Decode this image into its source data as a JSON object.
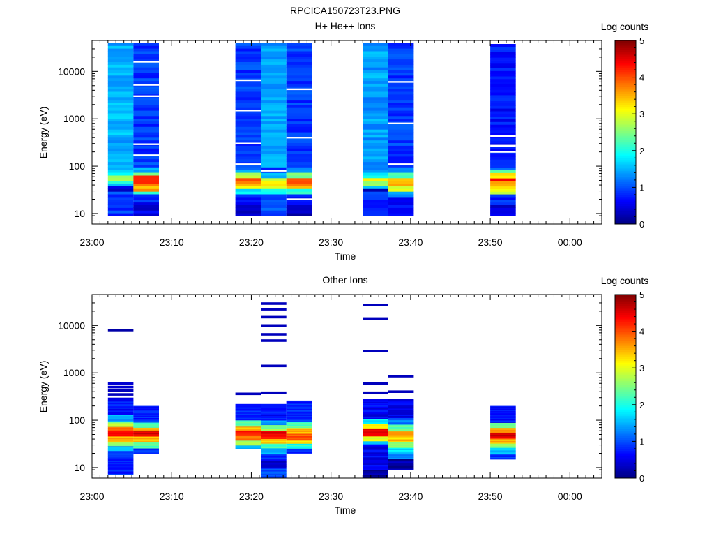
{
  "figure_title": "RPCICA150723T23.PNG",
  "panels": [
    {
      "title": "H+ He++ Ions",
      "ylabel": "Energy (eV)",
      "xlabel": "Time",
      "colorbar_title": "Log counts"
    },
    {
      "title": "Other Ions",
      "ylabel": "Energy (eV)",
      "xlabel": "Time",
      "colorbar_title": "Log counts"
    }
  ],
  "chart_data": [
    {
      "type": "heatmap",
      "title": "H+ He++ Ions",
      "xlabel": "Time",
      "ylabel": "Energy (eV)",
      "x_range_minutes": [
        0,
        64
      ],
      "x_ticks": [
        {
          "label": "23:00",
          "minutes": 0
        },
        {
          "label": "23:10",
          "minutes": 10
        },
        {
          "label": "23:20",
          "minutes": 20
        },
        {
          "label": "23:30",
          "minutes": 30
        },
        {
          "label": "23:40",
          "minutes": 40
        },
        {
          "label": "23:50",
          "minutes": 50
        },
        {
          "label": "00:00",
          "minutes": 60
        }
      ],
      "y_scale": "log",
      "y_range": [
        6,
        45000
      ],
      "y_ticks": [
        "10",
        "100",
        "1000",
        "10000"
      ],
      "colorbar": {
        "title": "Log counts",
        "range": [
          0,
          5
        ],
        "ticks": [
          "0",
          "1",
          "2",
          "3",
          "4",
          "5"
        ],
        "colormap": "jet"
      },
      "columns": [
        {
          "t_start": 2.0,
          "t_end": 5.2,
          "e_min": 9,
          "e_max": 40000,
          "bins": [
            [
              9,
              25,
              0.9
            ],
            [
              25,
              30,
              1.2
            ],
            [
              30,
              36,
              0.3
            ],
            [
              36,
              42,
              1.4
            ],
            [
              42,
              50,
              2.2
            ],
            [
              50,
              62,
              2.5
            ],
            [
              62,
              75,
              1.9
            ],
            [
              75,
              40000,
              1.5
            ]
          ]
        },
        {
          "t_start": 5.2,
          "t_end": 8.4,
          "e_min": 9,
          "e_max": 40000,
          "bins": [
            [
              9,
              18,
              0.5
            ],
            [
              18,
              25,
              0.8
            ],
            [
              25,
              31,
              2.0
            ],
            [
              31,
              38,
              3.5
            ],
            [
              38,
              45,
              3.7
            ],
            [
              45,
              54,
              4.4
            ],
            [
              54,
              62,
              4.2
            ],
            [
              62,
              75,
              2.5
            ],
            [
              75,
              100,
              1.4
            ],
            [
              100,
              40000,
              0.9
            ]
          ],
          "gaps": [
            170,
            290,
            3000,
            5200,
            16000
          ]
        },
        {
          "t_start": 18.0,
          "t_end": 21.2,
          "e_min": 9,
          "e_max": 40000,
          "bins": [
            [
              9,
              17,
              0.4
            ],
            [
              17,
              25,
              0.7
            ],
            [
              25,
              32,
              1.7
            ],
            [
              32,
              40,
              3.2
            ],
            [
              40,
              48,
              3.6
            ],
            [
              48,
              58,
              3.9
            ],
            [
              58,
              70,
              2.8
            ],
            [
              70,
              95,
              1.3
            ],
            [
              95,
              40000,
              0.9
            ]
          ],
          "gaps": [
            110,
            300,
            1500,
            6500
          ]
        },
        {
          "t_start": 21.2,
          "t_end": 24.4,
          "e_min": 9,
          "e_max": 40000,
          "bins": [
            [
              9,
              26,
              1.0
            ],
            [
              26,
              33,
              1.8
            ],
            [
              33,
              40,
              3.0
            ],
            [
              40,
              47,
              3.2
            ],
            [
              47,
              60,
              2.9
            ],
            [
              60,
              72,
              1.4
            ],
            [
              72,
              100,
              0.9
            ],
            [
              100,
              40000,
              1.4
            ]
          ],
          "gaps": [
            80
          ]
        },
        {
          "t_start": 24.4,
          "t_end": 27.6,
          "e_min": 9,
          "e_max": 40000,
          "bins": [
            [
              9,
              15,
              0.3
            ],
            [
              15,
              25,
              0.7
            ],
            [
              25,
              32,
              2.0
            ],
            [
              32,
              40,
              3.5
            ],
            [
              40,
              48,
              3.9
            ],
            [
              48,
              60,
              3.8
            ],
            [
              60,
              75,
              2.5
            ],
            [
              75,
              100,
              1.2
            ],
            [
              100,
              40000,
              0.9
            ]
          ],
          "gaps": [
            20,
            400,
            4200
          ]
        },
        {
          "t_start": 34.0,
          "t_end": 37.2,
          "e_min": 9,
          "e_max": 40000,
          "bins": [
            [
              9,
              28,
              0.8
            ],
            [
              28,
              34,
              0.3
            ],
            [
              34,
              40,
              1.4
            ],
            [
              40,
              50,
              2.6
            ],
            [
              50,
              60,
              3.0
            ],
            [
              60,
              75,
              1.8
            ],
            [
              75,
              40000,
              1.4
            ]
          ]
        },
        {
          "t_start": 37.2,
          "t_end": 40.4,
          "e_min": 9,
          "e_max": 40000,
          "bins": [
            [
              9,
              22,
              0.6
            ],
            [
              22,
              28,
              1.4
            ],
            [
              28,
              36,
              3.0
            ],
            [
              36,
              45,
              3.4
            ],
            [
              45,
              56,
              3.3
            ],
            [
              56,
              70,
              2.3
            ],
            [
              70,
              90,
              1.3
            ],
            [
              90,
              40000,
              0.9
            ]
          ],
          "gaps": [
            110,
            800,
            6000
          ]
        },
        {
          "t_start": 50.0,
          "t_end": 53.2,
          "e_min": 9,
          "e_max": 38000,
          "bins": [
            [
              9,
              16,
              0.4
            ],
            [
              16,
              25,
              0.8
            ],
            [
              25,
              30,
              2.6
            ],
            [
              30,
              38,
              3.1
            ],
            [
              38,
              47,
              3.7
            ],
            [
              47,
              58,
              4.2
            ],
            [
              58,
              70,
              3.3
            ],
            [
              70,
              85,
              2.3
            ],
            [
              85,
              100,
              1.4
            ],
            [
              100,
              38000,
              0.7
            ]
          ],
          "gaps": [
            200,
            270,
            430
          ]
        }
      ]
    },
    {
      "type": "heatmap",
      "title": "Other Ions",
      "xlabel": "Time",
      "ylabel": "Energy (eV)",
      "x_range_minutes": [
        0,
        64
      ],
      "x_ticks": [
        {
          "label": "23:00",
          "minutes": 0
        },
        {
          "label": "23:10",
          "minutes": 10
        },
        {
          "label": "23:20",
          "minutes": 20
        },
        {
          "label": "23:30",
          "minutes": 30
        },
        {
          "label": "23:40",
          "minutes": 40
        },
        {
          "label": "23:50",
          "minutes": 50
        },
        {
          "label": "00:00",
          "minutes": 60
        }
      ],
      "y_scale": "log",
      "y_range": [
        6,
        45000
      ],
      "y_ticks": [
        "10",
        "100",
        "1000",
        "10000"
      ],
      "colorbar": {
        "title": "Log counts",
        "range": [
          0,
          5
        ],
        "ticks": [
          "0",
          "1",
          "2",
          "3",
          "4",
          "5"
        ],
        "colormap": "jet"
      },
      "columns": [
        {
          "t_start": 2.0,
          "t_end": 5.2,
          "e_min": 7,
          "e_max": 300,
          "bins": [
            [
              7,
              16,
              0.8
            ],
            [
              16,
              22,
              1.0
            ],
            [
              22,
              28,
              1.5
            ],
            [
              28,
              35,
              2.6
            ],
            [
              35,
              45,
              3.5
            ],
            [
              45,
              60,
              4.3
            ],
            [
              60,
              75,
              3.8
            ],
            [
              75,
              95,
              2.7
            ],
            [
              95,
              130,
              1.5
            ],
            [
              130,
              300,
              0.7
            ]
          ],
          "lines": [
            [
              350,
              0.3
            ],
            [
              420,
              0.3
            ],
            [
              500,
              0.4
            ],
            [
              600,
              0.4
            ],
            [
              8000,
              0.2
            ]
          ]
        },
        {
          "t_start": 5.2,
          "t_end": 8.4,
          "e_min": 20,
          "e_max": 200,
          "bins": [
            [
              20,
              26,
              0.8
            ],
            [
              26,
              34,
              2.2
            ],
            [
              34,
              45,
              3.5
            ],
            [
              45,
              58,
              4.5
            ],
            [
              58,
              70,
              3.6
            ],
            [
              70,
              90,
              2.2
            ],
            [
              90,
              200,
              0.8
            ]
          ]
        },
        {
          "t_start": 18.0,
          "t_end": 21.2,
          "e_min": 25,
          "e_max": 220,
          "bins": [
            [
              25,
              30,
              1.6
            ],
            [
              30,
              38,
              2.8
            ],
            [
              38,
              48,
              3.8
            ],
            [
              48,
              60,
              4.3
            ],
            [
              60,
              75,
              3.5
            ],
            [
              75,
              100,
              2.3
            ],
            [
              100,
              220,
              0.8
            ]
          ],
          "lines": [
            [
              360,
              0.3
            ]
          ]
        },
        {
          "t_start": 21.2,
          "t_end": 24.4,
          "e_min": 6,
          "e_max": 220,
          "bins": [
            [
              6,
              10,
              1.0
            ],
            [
              10,
              15,
              0.5
            ],
            [
              15,
              20,
              0.8
            ],
            [
              20,
              26,
              1.6
            ],
            [
              26,
              32,
              2.2
            ],
            [
              32,
              40,
              3.3
            ],
            [
              40,
              50,
              4.2
            ],
            [
              50,
              62,
              4.6
            ],
            [
              62,
              80,
              2.6
            ],
            [
              80,
              100,
              1.3
            ],
            [
              100,
              220,
              0.7
            ]
          ],
          "lines": [
            [
              380,
              0.3
            ],
            [
              1400,
              0.3
            ],
            [
              4800,
              0.3
            ],
            [
              6500,
              0.3
            ],
            [
              10000,
              0.3
            ],
            [
              15000,
              0.3
            ],
            [
              22000,
              0.3
            ],
            [
              29000,
              0.3
            ]
          ]
        },
        {
          "t_start": 24.4,
          "t_end": 27.6,
          "e_min": 20,
          "e_max": 260,
          "bins": [
            [
              20,
              25,
              0.8
            ],
            [
              25,
              32,
              2.0
            ],
            [
              32,
              40,
              3.2
            ],
            [
              40,
              52,
              4.0
            ],
            [
              52,
              68,
              3.5
            ],
            [
              68,
              90,
              2.3
            ],
            [
              90,
              260,
              0.8
            ]
          ]
        },
        {
          "t_start": 34.0,
          "t_end": 37.2,
          "e_min": 6,
          "e_max": 280,
          "bins": [
            [
              6,
              9,
              0.1
            ],
            [
              9,
              30,
              0.6
            ],
            [
              30,
              36,
              1.5
            ],
            [
              36,
              45,
              3.0
            ],
            [
              45,
              55,
              4.4
            ],
            [
              55,
              68,
              4.5
            ],
            [
              68,
              85,
              3.3
            ],
            [
              85,
              110,
              1.8
            ],
            [
              110,
              280,
              0.6
            ]
          ],
          "lines": [
            [
              380,
              0.3
            ],
            [
              600,
              0.3
            ],
            [
              2900,
              0.3
            ],
            [
              14000,
              0.3
            ],
            [
              27000,
              0.3
            ]
          ]
        },
        {
          "t_start": 37.2,
          "t_end": 40.4,
          "e_min": 9,
          "e_max": 280,
          "bins": [
            [
              9,
              15,
              0.2
            ],
            [
              15,
              20,
              1.2
            ],
            [
              20,
              26,
              1.7
            ],
            [
              26,
              34,
              2.6
            ],
            [
              34,
              45,
              3.4
            ],
            [
              45,
              60,
              3.6
            ],
            [
              60,
              80,
              2.4
            ],
            [
              80,
              110,
              1.2
            ],
            [
              110,
              280,
              0.6
            ]
          ],
          "lines": [
            [
              400,
              0.3
            ],
            [
              850,
              0.3
            ]
          ]
        },
        {
          "t_start": 50.0,
          "t_end": 53.2,
          "e_min": 15,
          "e_max": 200,
          "bins": [
            [
              15,
              20,
              0.8
            ],
            [
              20,
              26,
              1.5
            ],
            [
              26,
              33,
              2.6
            ],
            [
              33,
              42,
              3.5
            ],
            [
              42,
              55,
              4.5
            ],
            [
              55,
              70,
              3.6
            ],
            [
              70,
              90,
              2.3
            ],
            [
              90,
              200,
              0.7
            ]
          ]
        }
      ]
    }
  ]
}
